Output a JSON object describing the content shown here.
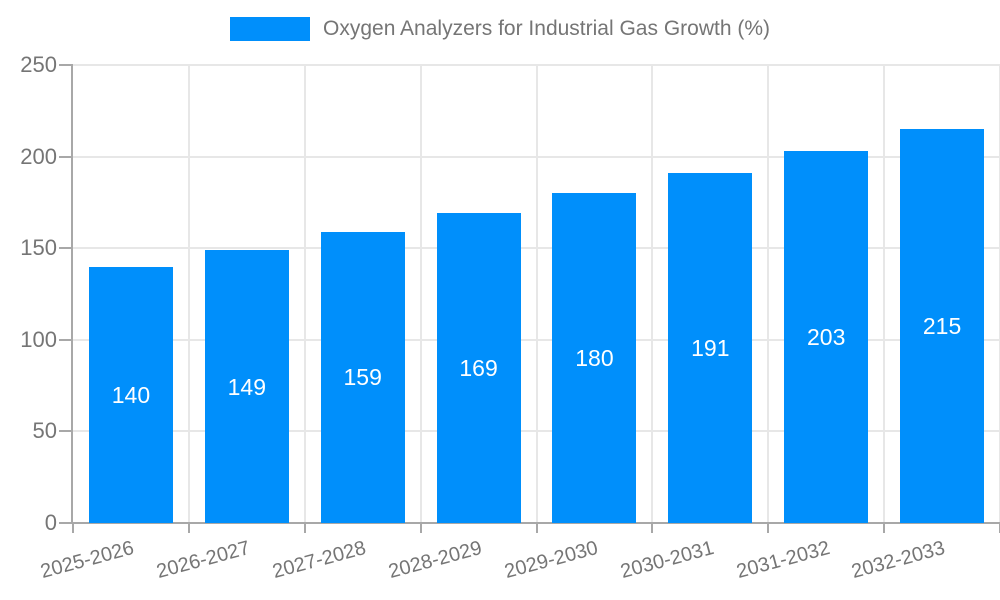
{
  "legend": {
    "label": "Oxygen Analyzers for Industrial Gas Growth (%)"
  },
  "chart_data": {
    "type": "bar",
    "title": "Oxygen Analyzers for Industrial Gas Growth (%)",
    "categories": [
      "2025-2026",
      "2026-2027",
      "2027-2028",
      "2028-2029",
      "2029-2030",
      "2030-2031",
      "2031-2032",
      "2032-2033"
    ],
    "values": [
      140,
      149,
      159,
      169,
      180,
      191,
      203,
      215
    ],
    "xlabel": "",
    "ylabel": "",
    "ylim": [
      0,
      250
    ],
    "yticks": [
      0,
      50,
      100,
      150,
      200,
      250
    ],
    "grid": true,
    "legend_position": "top-center",
    "data_labels": "white, centered inside bars",
    "colors": {
      "bar": "#008FFB",
      "bar_value_text": "#ffffff",
      "axis_text": "#757575",
      "gridline": "#e7e7e7",
      "axis_line": "#a8a8a8",
      "background": "#ffffff"
    }
  }
}
